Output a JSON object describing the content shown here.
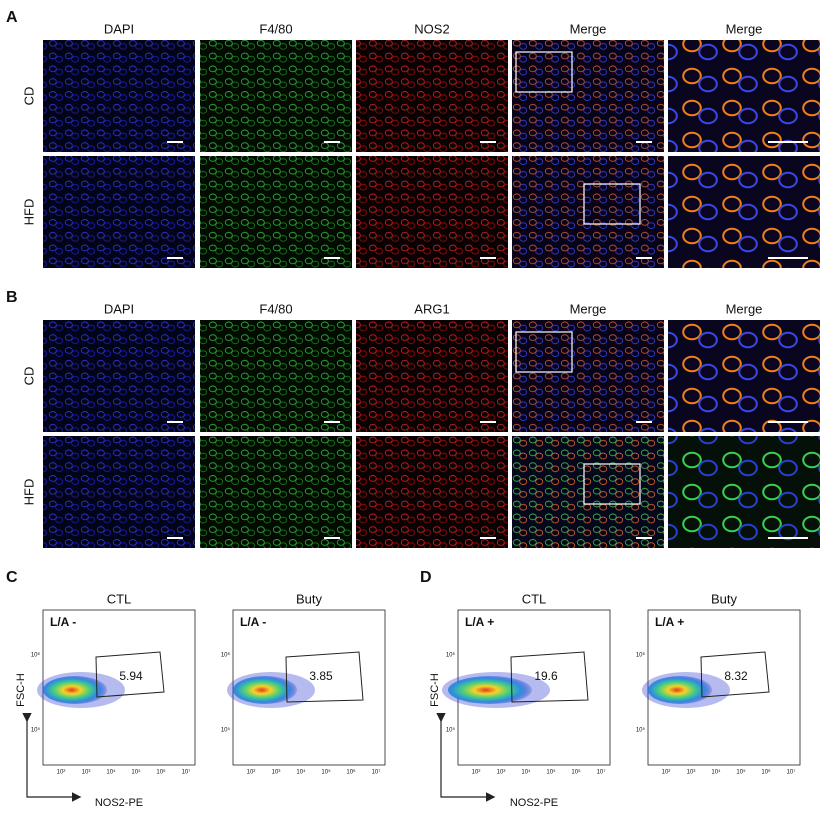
{
  "panels": [
    {
      "label": "A",
      "columns": [
        "DAPI",
        "F4/80",
        "NOS2",
        "Merge",
        "Merge"
      ],
      "rows": [
        "CD",
        "HFD"
      ]
    },
    {
      "label": "B",
      "columns": [
        "DAPI",
        "F4/80",
        "ARG1",
        "Merge",
        "Merge"
      ],
      "rows": [
        "CD",
        "HFD"
      ]
    }
  ],
  "flow": [
    {
      "label": "C",
      "plots": [
        {
          "title": "CTL",
          "gate": "L/A -",
          "percent": "5.94"
        },
        {
          "title": "Buty",
          "gate": "L/A -",
          "percent": "3.85"
        }
      ]
    },
    {
      "label": "D",
      "plots": [
        {
          "title": "CTL",
          "gate": "L/A +",
          "percent": "19.6"
        },
        {
          "title": "Buty",
          "gate": "L/A +",
          "percent": "8.32"
        }
      ]
    }
  ],
  "flow_axes": {
    "y_label": "FSC-H",
    "x_label": "NOS2-PE",
    "x_tick_labels": [
      "10²",
      "10³",
      "10⁴",
      "10⁵",
      "10⁶",
      "10⁷"
    ],
    "y_tick_labels": [
      "10⁶",
      "10⁵"
    ]
  }
}
